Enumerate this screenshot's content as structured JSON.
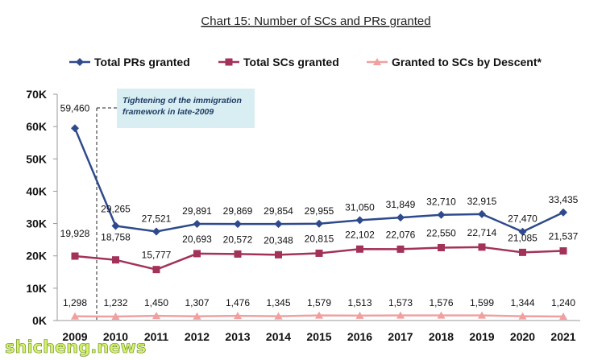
{
  "chart_data": {
    "type": "line",
    "title": "Chart 15: Number of SCs and PRs granted",
    "categories": [
      "2009",
      "2010",
      "2011",
      "2012",
      "2013",
      "2014",
      "2015",
      "2016",
      "2017",
      "2018",
      "2019",
      "2020",
      "2021"
    ],
    "ylim": [
      0,
      70000
    ],
    "yticks": [
      "0K",
      "10K",
      "20K",
      "30K",
      "40K",
      "50K",
      "60K",
      "70K"
    ],
    "legend_position": "top",
    "series": [
      {
        "name": "Total PRs granted",
        "color": "#2e4a8c",
        "marker": "diamond",
        "values": [
          59460,
          29265,
          27521,
          29891,
          29869,
          29854,
          29955,
          31050,
          31849,
          32710,
          32915,
          27470,
          33435
        ],
        "labels": [
          "59,460",
          "29,265",
          "27,521",
          "29,891",
          "29,869",
          "29,854",
          "29,955",
          "31,050",
          "31,849",
          "32,710",
          "32,915",
          "27,470",
          "33,435"
        ]
      },
      {
        "name": "Total SCs granted",
        "color": "#a3325a",
        "marker": "square",
        "values": [
          19928,
          18758,
          15777,
          20693,
          20572,
          20348,
          20815,
          22102,
          22076,
          22550,
          22714,
          21085,
          21537
        ],
        "labels": [
          "19,928",
          "18,758",
          "15,777",
          "20,693",
          "20,572",
          "20,348",
          "20,815",
          "22,102",
          "22,076",
          "22,550",
          "22,714",
          "21,085",
          "21,537"
        ]
      },
      {
        "name": "Granted to SCs by Descent*",
        "color": "#f0a0a0",
        "marker": "triangle",
        "values": [
          1298,
          1232,
          1450,
          1307,
          1476,
          1345,
          1579,
          1513,
          1573,
          1576,
          1599,
          1344,
          1240
        ],
        "labels": [
          "1,298",
          "1,232",
          "1,450",
          "1,307",
          "1,476",
          "1,345",
          "1,579",
          "1,513",
          "1,573",
          "1,576",
          "1,599",
          "1,344",
          "1,240"
        ]
      }
    ],
    "annotation": {
      "lines": [
        "Tightening of the immigration",
        "framework in late-2009"
      ],
      "fill": "#d9eef2",
      "at_category": "2009"
    }
  },
  "watermark": "shicheng.news"
}
